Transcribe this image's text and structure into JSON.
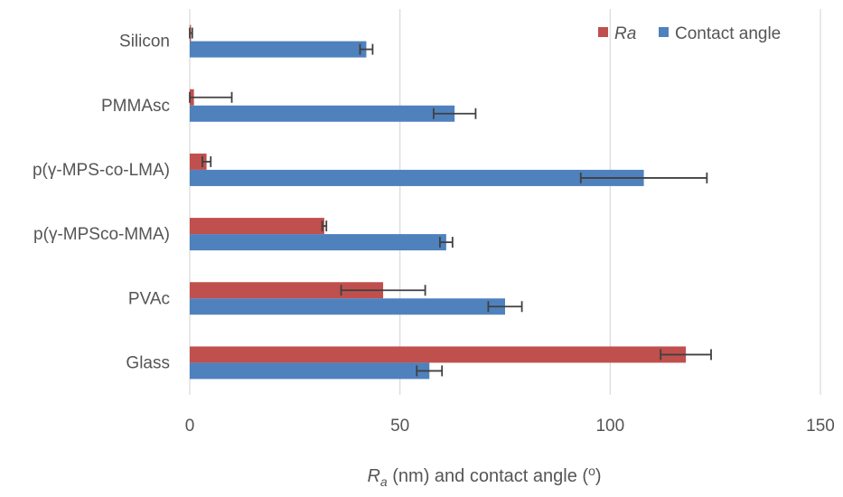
{
  "chart_data": {
    "type": "bar",
    "orientation": "horizontal",
    "categories": [
      "Silicon",
      "PMMAsc",
      "p(γ-MPS-co-LMA)",
      "p(γ-MPSco-MMA)",
      "PVAc",
      "Glass"
    ],
    "series": [
      {
        "name": "Ra",
        "name_italic": true,
        "color": "#C0504D",
        "values": [
          0.3,
          1,
          4,
          32,
          46,
          118
        ],
        "errors": [
          0.3,
          9,
          1,
          0.5,
          10,
          6
        ]
      },
      {
        "name": "Contact angle",
        "color": "#4F81BD",
        "values": [
          42,
          63,
          108,
          61,
          75,
          57
        ],
        "errors": [
          1.5,
          5,
          15,
          1.5,
          4,
          3
        ]
      }
    ],
    "xlim": [
      0,
      150
    ],
    "xticks": [
      0,
      50,
      100,
      150
    ],
    "grid": true,
    "legend_position": "top-right",
    "xlabel": {
      "symbol": "R",
      "subscript": "a",
      "rest_prefix": " (nm) and contact angle (",
      "degree": "o",
      "rest_suffix": ")"
    },
    "ylabel": ""
  }
}
